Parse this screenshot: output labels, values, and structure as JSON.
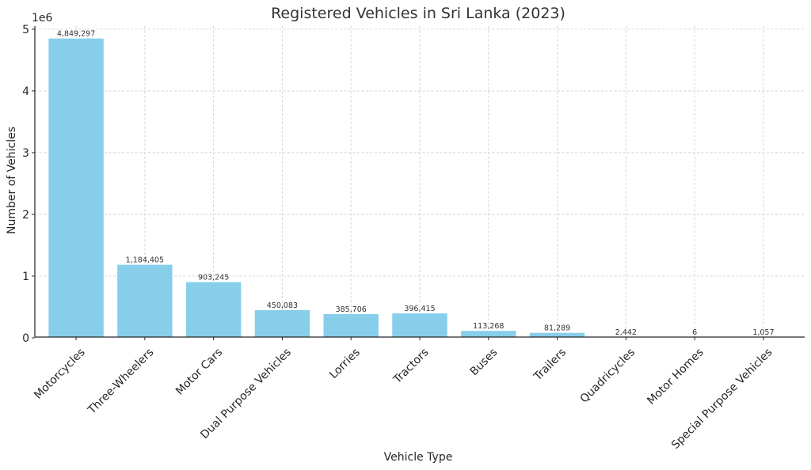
{
  "chart_data": {
    "type": "bar",
    "title": "Registered Vehicles in Sri Lanka (2023)",
    "xlabel": "Vehicle Type",
    "ylabel": "Number of Vehicles",
    "y_offset_label": "1e6",
    "y_ticks": [
      0,
      1000000,
      2000000,
      3000000,
      4000000,
      5000000
    ],
    "y_tick_labels": [
      "0",
      "1",
      "2",
      "3",
      "4",
      "5"
    ],
    "ylim": [
      0,
      5050000
    ],
    "grid": true,
    "bar_color": "#87ceeb",
    "categories": [
      "Motorcycles",
      "Three-Wheelers",
      "Motor Cars",
      "Dual Purpose Vehicles",
      "Lorries",
      "Tractors",
      "Buses",
      "Trailers",
      "Quadricycles",
      "Motor Homes",
      "Special Purpose Vehicles"
    ],
    "values": [
      4849297,
      1184405,
      903245,
      450083,
      385706,
      396415,
      113268,
      81289,
      2442,
      6,
      1057
    ],
    "value_labels": [
      "4,849,297",
      "1,184,405",
      "903,245",
      "450,083",
      "385,706",
      "396,415",
      "113,268",
      "81,289",
      "2,442",
      "6",
      "1,057"
    ]
  }
}
